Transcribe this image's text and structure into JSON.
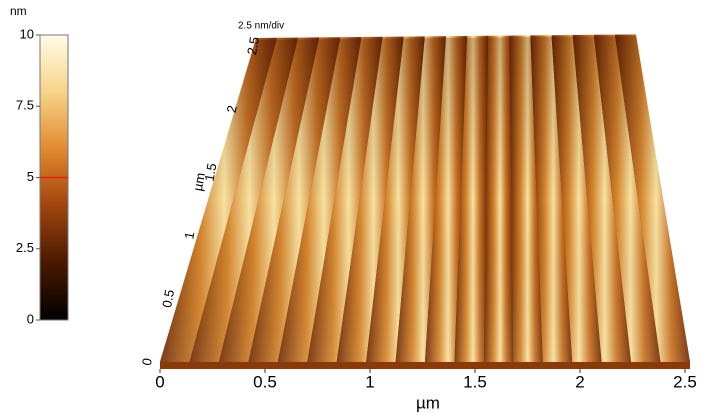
{
  "chart_data": {
    "type": "surface",
    "colorbar": {
      "unit": "nm",
      "lim": [
        0,
        10
      ],
      "ticks": [
        0,
        2.5,
        5,
        7.5,
        10
      ],
      "marker": 5,
      "marker_color": "#e8200c"
    },
    "zscale": "2.5 nm/div",
    "xlabel": "µm",
    "xlim": [
      0,
      2.5
    ],
    "xticks": [
      0,
      0.5,
      1,
      1.5,
      2,
      2.5
    ],
    "ylabel": "µm",
    "ylim": [
      0,
      2.5
    ],
    "yticks": [
      0,
      0.5,
      1,
      1.5,
      2,
      2.5
    ]
  }
}
